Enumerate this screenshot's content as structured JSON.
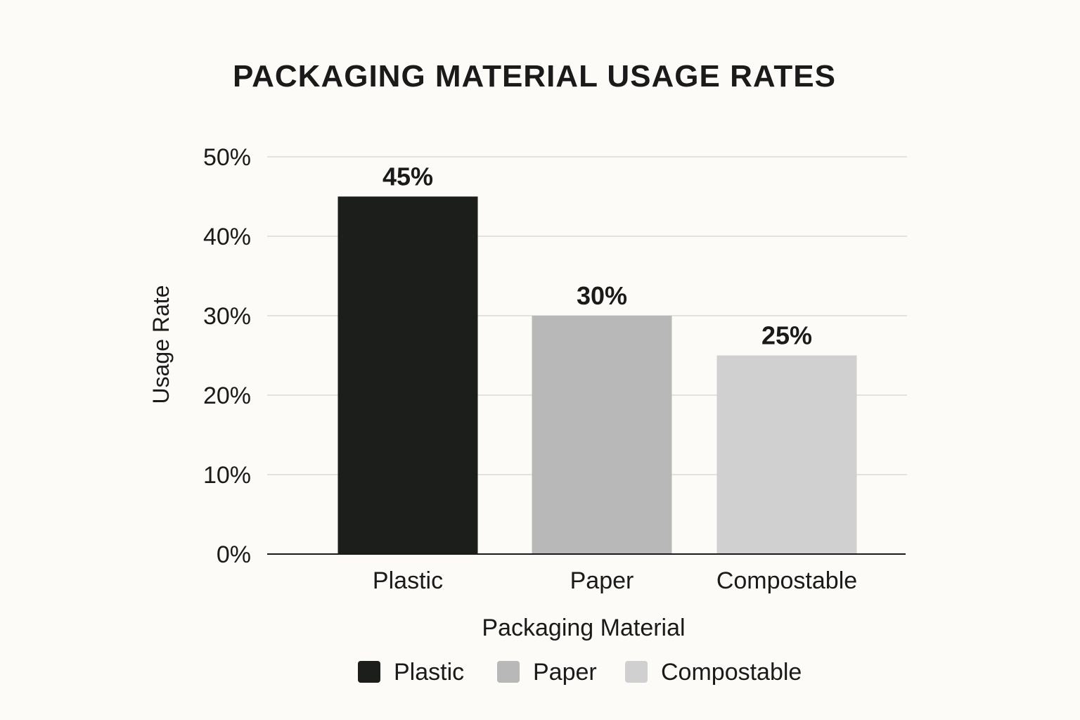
{
  "colors": {
    "background": "#fcfbf7",
    "text": "#1a1a1a",
    "gridline": "#d9d9d6",
    "axis": "#1a1a1a"
  },
  "chart_data": {
    "type": "bar",
    "title": "PACKAGING MATERIAL USAGE RATES",
    "xlabel": "Packaging Material",
    "ylabel": "Usage Rate",
    "categories": [
      "Plastic",
      "Paper",
      "Compostable"
    ],
    "values": [
      45,
      30,
      25
    ],
    "value_labels": [
      "45%",
      "30%",
      "25%"
    ],
    "bar_colors": [
      "#1c1e1c",
      "#b8b8b8",
      "#d0d0d0"
    ],
    "ylim": [
      0,
      50
    ],
    "yticks": [
      0,
      10,
      20,
      30,
      40,
      50
    ],
    "ytick_labels": [
      "0%",
      "10%",
      "20%",
      "30%",
      "40%",
      "50%"
    ],
    "grid": true,
    "legend": {
      "position": "bottom",
      "entries": [
        "Plastic",
        "Paper",
        "Compostable"
      ]
    }
  }
}
